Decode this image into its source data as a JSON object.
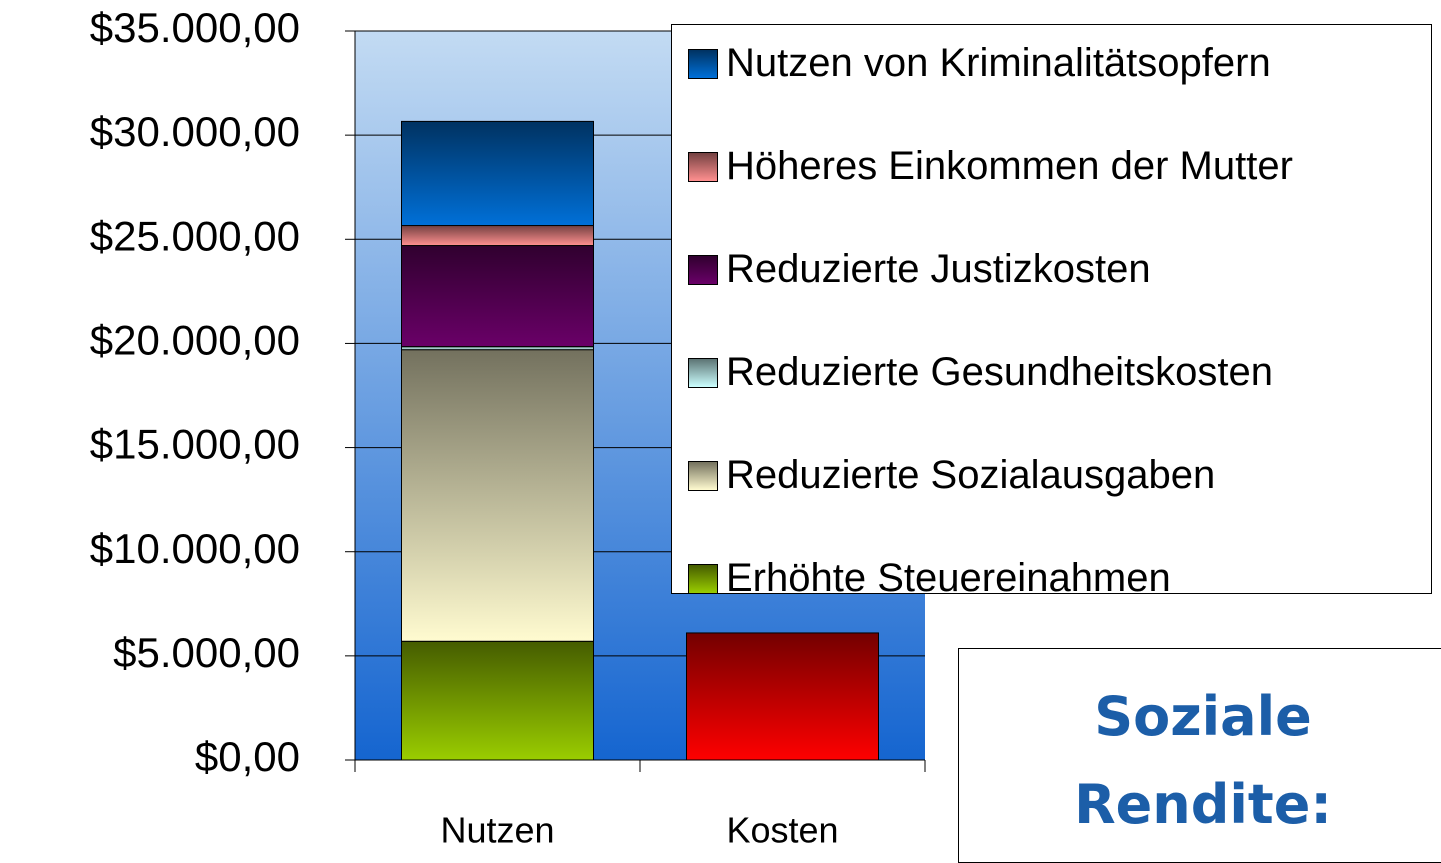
{
  "chart_data": {
    "type": "stacked_bar",
    "categories": [
      "Nutzen",
      "Kosten"
    ],
    "series": [
      {
        "name": "Erhöhte Steuereinahmen",
        "color": "#9acd00",
        "values": [
          5700,
          null
        ]
      },
      {
        "name": "Reduzierte Sozialausgaben",
        "color": "#fffbd0",
        "values": [
          14000,
          null
        ]
      },
      {
        "name": "Reduzierte Gesundheitskosten",
        "color": "#ccffff",
        "values": [
          150,
          null
        ]
      },
      {
        "name": "Reduzierte Justizkosten",
        "color": "#6a0068",
        "values": [
          4850,
          null
        ]
      },
      {
        "name": "Höheres Einkommen der Mutter",
        "color": "#ff9090",
        "values": [
          960,
          null
        ]
      },
      {
        "name": "Nutzen von Kriminalitätsopfern",
        "color": "#0070d8",
        "values": [
          5000,
          null
        ]
      },
      {
        "color": "#ff0000",
        "values": [
          null,
          6100
        ]
      }
    ],
    "ylim": [
      0,
      35000
    ],
    "yticks": [
      {
        "value": 0,
        "label": "$0,00"
      },
      {
        "value": 5000,
        "label": "$5.000,00"
      },
      {
        "value": 10000,
        "label": "$10.000,00"
      },
      {
        "value": 15000,
        "label": "$15.000,00"
      },
      {
        "value": 20000,
        "label": "$20.000,00"
      },
      {
        "value": 25000,
        "label": "$25.000,00"
      },
      {
        "value": 30000,
        "label": "$30.000,00"
      },
      {
        "value": 35000,
        "label": "$35.000,00"
      }
    ],
    "grid": true,
    "legend": "top-right",
    "annotation": "Soziale Rendite:"
  }
}
